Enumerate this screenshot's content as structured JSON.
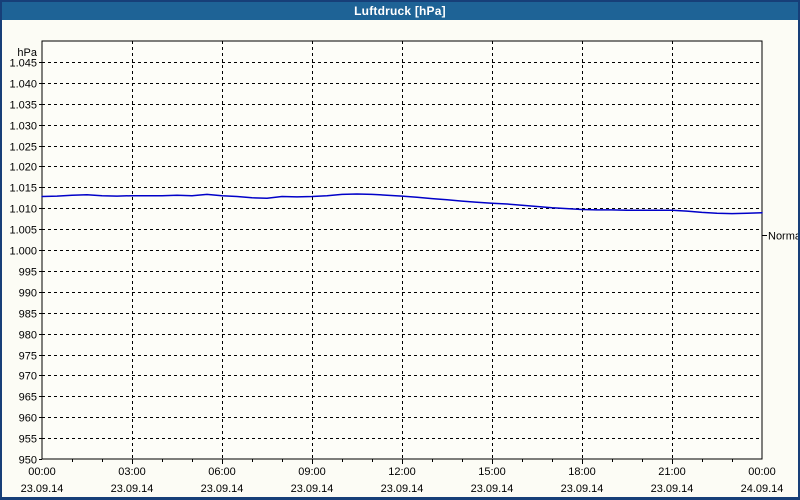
{
  "window": {
    "title": "Luftdruck [hPa]"
  },
  "colors": {
    "titlebar_bg": "#1e6396",
    "titlebar_text": "#ffffff",
    "outer_border": "#173f78",
    "background": "#fcfcf5",
    "plot_background": "#fdfdf8",
    "grid": "#000000",
    "axis": "#000000",
    "label_text": "#000000",
    "line": "#0000c8"
  },
  "chart_data": {
    "type": "line",
    "title": "Luftdruck [hPa]",
    "y_unit_label": "hPa",
    "ylim": [
      950,
      1050
    ],
    "grid": true,
    "y_ticks": [
      {
        "value": 1045,
        "label": "1.045"
      },
      {
        "value": 1040,
        "label": "1.040"
      },
      {
        "value": 1035,
        "label": "1.035"
      },
      {
        "value": 1030,
        "label": "1.030"
      },
      {
        "value": 1025,
        "label": "1.025"
      },
      {
        "value": 1020,
        "label": "1.020"
      },
      {
        "value": 1015,
        "label": "1.015"
      },
      {
        "value": 1010,
        "label": "1.010"
      },
      {
        "value": 1005,
        "label": "1.005"
      },
      {
        "value": 1000,
        "label": "1.000"
      },
      {
        "value": 995,
        "label": "995"
      },
      {
        "value": 990,
        "label": "990"
      },
      {
        "value": 985,
        "label": "985"
      },
      {
        "value": 980,
        "label": "980"
      },
      {
        "value": 975,
        "label": "975"
      },
      {
        "value": 970,
        "label": "970"
      },
      {
        "value": 965,
        "label": "965"
      },
      {
        "value": 960,
        "label": "960"
      },
      {
        "value": 955,
        "label": "955"
      },
      {
        "value": 950,
        "label": "950"
      }
    ],
    "x_hours_span": 24,
    "x_major_step_hours": 3,
    "x_minor_step_hours": 1,
    "x_ticks": [
      {
        "hour": 0,
        "time": "00:00",
        "date": "23.09.14"
      },
      {
        "hour": 3,
        "time": "03:00",
        "date": "23.09.14"
      },
      {
        "hour": 6,
        "time": "06:00",
        "date": "23.09.14"
      },
      {
        "hour": 9,
        "time": "09:00",
        "date": "23.09.14"
      },
      {
        "hour": 12,
        "time": "12:00",
        "date": "23.09.14"
      },
      {
        "hour": 15,
        "time": "15:00",
        "date": "23.09.14"
      },
      {
        "hour": 18,
        "time": "18:00",
        "date": "23.09.14"
      },
      {
        "hour": 21,
        "time": "21:00",
        "date": "23.09.14"
      },
      {
        "hour": 24,
        "time": "00:00",
        "date": "24.09.14"
      }
    ],
    "normal_marker": {
      "label": "Normal",
      "value": 1003.5
    },
    "series": [
      {
        "name": "Luftdruck",
        "color": "#0000c8",
        "points": [
          [
            0.0,
            1012.8
          ],
          [
            0.5,
            1012.9
          ],
          [
            1.0,
            1013.1
          ],
          [
            1.5,
            1013.2
          ],
          [
            2.0,
            1013.0
          ],
          [
            2.5,
            1012.9
          ],
          [
            3.0,
            1013.0
          ],
          [
            3.5,
            1013.0
          ],
          [
            4.0,
            1013.0
          ],
          [
            4.5,
            1013.1
          ],
          [
            5.0,
            1013.0
          ],
          [
            5.5,
            1013.3
          ],
          [
            6.0,
            1013.0
          ],
          [
            6.5,
            1012.8
          ],
          [
            7.0,
            1012.5
          ],
          [
            7.5,
            1012.4
          ],
          [
            8.0,
            1012.8
          ],
          [
            8.5,
            1012.7
          ],
          [
            9.0,
            1012.8
          ],
          [
            9.5,
            1013.0
          ],
          [
            10.0,
            1013.3
          ],
          [
            10.5,
            1013.4
          ],
          [
            11.0,
            1013.3
          ],
          [
            11.5,
            1013.1
          ],
          [
            12.0,
            1012.9
          ],
          [
            12.5,
            1012.6
          ],
          [
            13.0,
            1012.3
          ],
          [
            13.5,
            1012.0
          ],
          [
            14.0,
            1011.7
          ],
          [
            14.5,
            1011.4
          ],
          [
            15.0,
            1011.2
          ],
          [
            15.5,
            1011.0
          ],
          [
            16.0,
            1010.7
          ],
          [
            16.5,
            1010.4
          ],
          [
            17.0,
            1010.1
          ],
          [
            17.5,
            1009.9
          ],
          [
            18.0,
            1009.7
          ],
          [
            18.5,
            1009.6
          ],
          [
            19.0,
            1009.6
          ],
          [
            19.5,
            1009.5
          ],
          [
            20.0,
            1009.5
          ],
          [
            20.5,
            1009.5
          ],
          [
            21.0,
            1009.5
          ],
          [
            21.5,
            1009.3
          ],
          [
            22.0,
            1009.0
          ],
          [
            22.5,
            1008.8
          ],
          [
            23.0,
            1008.7
          ],
          [
            23.5,
            1008.8
          ],
          [
            24.0,
            1008.9
          ]
        ]
      }
    ]
  }
}
